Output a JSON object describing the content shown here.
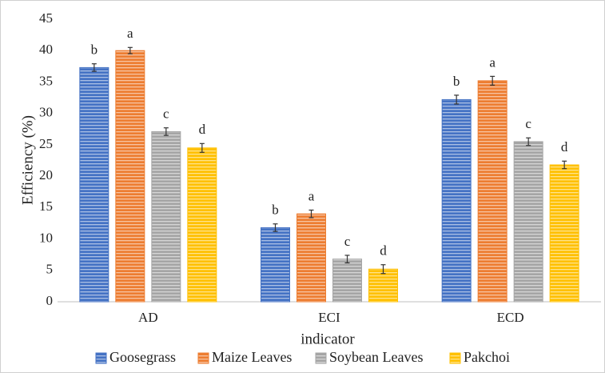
{
  "chart_data": {
    "type": "bar",
    "y_label": "Efficiency (%)",
    "x_label": "indicator",
    "categories": [
      "AD",
      "ECI",
      "ECD"
    ],
    "series": [
      {
        "name": "Goosegrass",
        "color": "#4472c4",
        "values": [
          37.3,
          11.8,
          32.2
        ],
        "errors": [
          0.6,
          0.6,
          0.7
        ],
        "labels": [
          "b",
          "b",
          "b"
        ]
      },
      {
        "name": "Maize Leaves",
        "color": "#ed7d31",
        "values": [
          40.0,
          14.0,
          35.2
        ],
        "errors": [
          0.5,
          0.6,
          0.7
        ],
        "labels": [
          "a",
          "a",
          "a"
        ]
      },
      {
        "name": "Soybean Leaves",
        "color": "#a5a5a5",
        "values": [
          27.1,
          6.8,
          25.5
        ],
        "errors": [
          0.6,
          0.6,
          0.6
        ],
        "labels": [
          "c",
          "c",
          "c"
        ]
      },
      {
        "name": "Pakchoi",
        "color": "#ffc000",
        "values": [
          24.5,
          5.2,
          21.8
        ],
        "errors": [
          0.7,
          0.7,
          0.6
        ],
        "labels": [
          "d",
          "d",
          "d"
        ]
      }
    ],
    "ylim": [
      0,
      45
    ],
    "yticks": [
      0,
      5,
      10,
      15,
      20,
      25,
      30,
      35,
      40,
      45
    ],
    "grid": false,
    "legend": "bottom"
  }
}
